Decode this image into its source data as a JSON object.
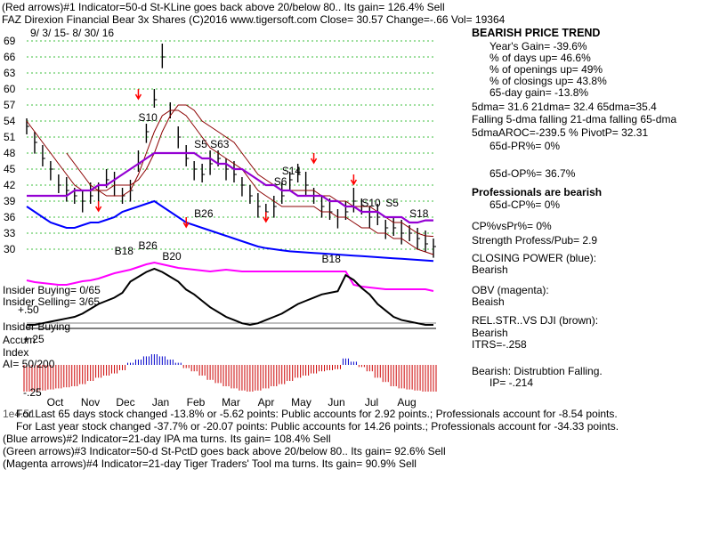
{
  "header": {
    "line1": "(Red arrows)#1 Indicator=50-d St-KLine goes back above 20/below 80.. Its gain= 126.4% Sell",
    "line2": "FAZ  Direxion Financial Bear 3x Shares  (C)2016 www.tigersoft.com     Close=  30.57  Change=-.66 Vol= 19364",
    "date_range": "9/ 3/ 15-  8/ 30/ 16"
  },
  "right_panel": {
    "title": "BEARISH PRICE TREND",
    "lines": [
      "Year's Gain= -39.6%",
      "% of days up= 46.6%",
      "% of openings up= 49%",
      "% of closings up= 43.8%",
      "65-day gain= -13.8%",
      "5dma= 31.6  21dma= 32.4  65dma=35.4",
      "Falling 5-dma falling 21-dma falling 65-dma",
      "5dmaAROC=-239.5  %  PivotP= 32.31",
      "65d-PR%= 0%",
      "65d-OP%= 36.7%",
      "Professionals are bearish",
      "65d-CP%= 0%",
      "CP%vsPr%=  0%",
      "Strength Profess/Pub= 2.9",
      "CLOSING POWER (blue):",
      "Bearish",
      "OBV (magenta):",
      "Beaish",
      "REL.STR..VS DJI (brown):",
      "Bearish",
      "ITRS=-.258",
      "Bearish: Distrubtion Falling.",
      "IP= -.214"
    ]
  },
  "left_labels": {
    "insider_buying_count": "Insider Buying= 0/65",
    "insider_selling_count": "Insider Selling= 3/65",
    "plus50": "+.50",
    "insider_buying": "Insider Buying",
    "accum": "Accum",
    "plus25": "+.25",
    "index": "Index",
    "ai": "AI= 50/200",
    "minus25": "-.25"
  },
  "footer": [
    "For Last 65 days stock changed -13.8% or -5.62 points:  Public accounts for  2.92 points.;  Professionals account for -8.54 points.",
    "For Last year stock changed -37.7% or -20.07 points:  Public accounts for  14.26 points.;  Professionals account for -34.33 points.",
    "(Blue arrows)#2 Indicator=21-day IPA ma turns. Its gain= 108.4% Sell",
    "(Green arrows)#3 Indicator=50-d St-PctD goes back above 20/below 80.. Its gain= 92.6% Sell",
    "(Magenta arrows)#4 Indicator=21-day Tiger Traders' Tool ma turns. Its gain= 90.9% Sell"
  ],
  "footer_overlap_prefix": "1e4.51",
  "colors": {
    "price": "#000000",
    "ma_red": "#8b0000",
    "ma_purple": "#9400d3",
    "closing_power": "#0000ff",
    "obv": "#ff00ff",
    "grid": "#00aa00",
    "signal": "#ff0000",
    "accum_pos": "#0000cc",
    "accum_neg": "#cc0000"
  },
  "chart_data": {
    "type": "line",
    "title": "FAZ  Direxion Financial Bear 3x Shares",
    "y_ticks": [
      69,
      66,
      63,
      60,
      57,
      54,
      51,
      48,
      45,
      42,
      39,
      36,
      33,
      30
    ],
    "ylim": [
      27.5,
      70.5
    ],
    "x_months": [
      "Oct",
      "Nov",
      "Dec",
      "Jan",
      "Feb",
      "Mar",
      "Apr",
      "May",
      "Jun",
      "Jul",
      "Aug"
    ],
    "price_series": {
      "x_week": [
        0,
        1,
        2,
        3,
        4,
        5,
        6,
        7,
        8,
        9,
        10,
        11,
        12,
        13,
        14,
        15,
        16,
        17,
        18,
        19,
        20,
        21,
        22,
        23,
        24,
        25,
        26,
        27,
        28,
        29,
        30,
        31,
        32,
        33,
        34,
        35,
        36,
        37,
        38,
        39,
        40,
        41,
        42,
        43,
        44,
        45,
        46,
        47,
        48,
        49,
        50,
        51
      ],
      "close": [
        53,
        50,
        47,
        45,
        42,
        41,
        40,
        39,
        40,
        41,
        43,
        42,
        40,
        41,
        46,
        52,
        58,
        66,
        56,
        51,
        47,
        45,
        44,
        46,
        47,
        45,
        44,
        42,
        40,
        38,
        37,
        38,
        40,
        43,
        44,
        42,
        40,
        38,
        37,
        36,
        37,
        39,
        38,
        36,
        36,
        34,
        34,
        33,
        33,
        32,
        31,
        30.5
      ]
    },
    "ma21_series": [
      54,
      52,
      50,
      48,
      46,
      44,
      42,
      41,
      41,
      41,
      41,
      42,
      42,
      42,
      43,
      45,
      48,
      52,
      55,
      57,
      57,
      56,
      54,
      53,
      52,
      51,
      50,
      48,
      46,
      44,
      43,
      42,
      41,
      41,
      41,
      41,
      41,
      40,
      40,
      39,
      39,
      38,
      38,
      38,
      37,
      36,
      35,
      35,
      34,
      33,
      32.5,
      32.4
    ],
    "ma65_series": [
      40,
      40,
      40,
      40,
      40,
      40,
      41,
      41,
      41,
      42,
      42,
      43,
      44,
      45,
      46,
      47,
      48,
      48,
      48,
      48,
      48,
      48,
      47,
      47,
      46,
      46,
      45,
      45,
      44,
      43,
      42,
      42,
      41,
      41,
      40,
      40,
      40,
      40,
      39,
      39,
      38,
      38,
      37,
      37,
      37,
      36,
      36,
      36,
      35,
      35,
      35.4,
      35.4
    ],
    "lower_ma_series": [
      null,
      null,
      null,
      null,
      null,
      48,
      46,
      44,
      42,
      41,
      40,
      40,
      40,
      41,
      44,
      48,
      52,
      55,
      56,
      56,
      55,
      53,
      51,
      49,
      48,
      47,
      46,
      45,
      43,
      41,
      40,
      39,
      38,
      38,
      38,
      38,
      38,
      37,
      37,
      36,
      36,
      35,
      34,
      34,
      33,
      33,
      32,
      32,
      31,
      30,
      29.5,
      29
    ],
    "closing_power": [
      38,
      37,
      36,
      35,
      34.5,
      34,
      34,
      34.5,
      35,
      35,
      35.5,
      36,
      37,
      37.5,
      38,
      38.5,
      39,
      38,
      37,
      36,
      35,
      34.5,
      34,
      33.5,
      33,
      32.5,
      32,
      31.5,
      31,
      30.5,
      30.2,
      30,
      29.8,
      29.6,
      29.5,
      29.4,
      29.3,
      29.2,
      29.1,
      29,
      28.9,
      28.8,
      28.7,
      28.6,
      28.5,
      28.4,
      28.3,
      28.2,
      28.1,
      28,
      27.9,
      27.8
    ],
    "obv": [
      25,
      24.8,
      24.7,
      24.6,
      24.5,
      24.5,
      24.7,
      24.9,
      25,
      25.2,
      25.5,
      25.8,
      26,
      26.2,
      26.5,
      26.8,
      27,
      26.8,
      26.6,
      26.4,
      26.3,
      26.2,
      26.1,
      26,
      26.1,
      26.2,
      26.1,
      26,
      26,
      26,
      26,
      26,
      26,
      26,
      26,
      26,
      26,
      26,
      26,
      26,
      26,
      24.5,
      24.3,
      24.2,
      24.1,
      24,
      24,
      24,
      24,
      24,
      24,
      23.8
    ],
    "accum_bars": [
      -0.25,
      -0.25,
      -0.24,
      -0.23,
      -0.22,
      -0.21,
      -0.2,
      -0.18,
      -0.15,
      -0.12,
      -0.1,
      -0.08,
      -0.05,
      0.02,
      0.05,
      0.08,
      0.1,
      0.08,
      0.05,
      0.02,
      -0.03,
      -0.06,
      -0.1,
      -0.14,
      -0.17,
      -0.2,
      -0.22,
      -0.24,
      -0.25,
      -0.24,
      -0.22,
      -0.2,
      -0.18,
      -0.15,
      -0.12,
      -0.1,
      -0.08,
      -0.06,
      -0.05,
      -0.04,
      0.06,
      0.03,
      -0.02,
      -0.06,
      -0.12,
      -0.16,
      -0.2,
      -0.22,
      -0.23,
      -0.24,
      -0.25,
      -0.25
    ],
    "annotations": [
      {
        "label": "S10",
        "week": 14,
        "price": 54
      },
      {
        "label": "S5",
        "week": 21,
        "price": 49
      },
      {
        "label": "S63",
        "week": 23,
        "price": 49
      },
      {
        "label": "S14",
        "week": 32,
        "price": 44
      },
      {
        "label": "S6",
        "week": 31,
        "price": 42
      },
      {
        "label": "S10",
        "week": 42,
        "price": 38
      },
      {
        "label": "S5",
        "week": 45,
        "price": 38
      },
      {
        "label": "S18",
        "week": 48,
        "price": 36
      },
      {
        "label": "B26",
        "week": 21,
        "price": 36
      },
      {
        "label": "B18",
        "week": 11,
        "price": 29
      },
      {
        "label": "B26",
        "week": 14,
        "price": 30
      },
      {
        "label": "B20",
        "week": 17,
        "price": 28
      },
      {
        "label": "B18",
        "week": 37,
        "price": 27.5
      }
    ]
  }
}
